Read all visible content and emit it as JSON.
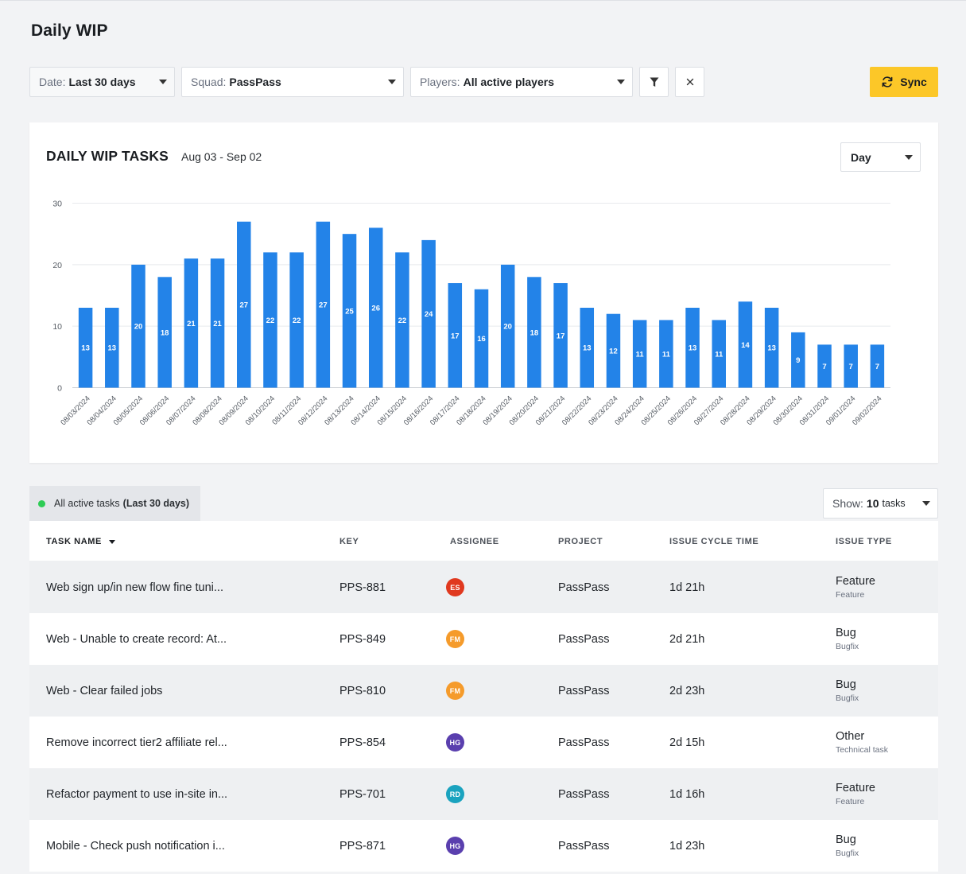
{
  "page": {
    "title": "Daily WIP"
  },
  "filters": {
    "date": {
      "label": "Date:",
      "value": "Last 30 days"
    },
    "squad": {
      "label": "Squad:",
      "value": "PassPass"
    },
    "players": {
      "label": "Players:",
      "value": "All active players"
    },
    "filter_icon": "filter-icon",
    "clear_icon": "close-icon",
    "sync_label": "Sync",
    "sync_icon": "refresh-icon"
  },
  "colors": {
    "accent": "#fcc728",
    "bar": "#2383e8",
    "active_dot": "#2ecc55"
  },
  "chart_card": {
    "title": "DAILY WIP TASKS",
    "range": "Aug 03 - Sep 02",
    "granularity": "Day"
  },
  "chart_data": {
    "type": "bar",
    "title": "DAILY WIP TASKS",
    "subtitle": "Aug 03 - Sep 02",
    "xlabel": "",
    "ylabel": "",
    "ylim": [
      0,
      30
    ],
    "yticks": [
      0,
      10,
      20,
      30
    ],
    "grid": true,
    "categories": [
      "08/03/2024",
      "08/04/2024",
      "08/05/2024",
      "08/06/2024",
      "08/07/2024",
      "08/08/2024",
      "08/09/2024",
      "08/10/2024",
      "08/11/2024",
      "08/12/2024",
      "08/13/2024",
      "08/14/2024",
      "08/15/2024",
      "08/16/2024",
      "08/17/2024",
      "08/18/2024",
      "08/19/2024",
      "08/20/2024",
      "08/21/2024",
      "08/22/2024",
      "08/23/2024",
      "08/24/2024",
      "08/25/2024",
      "08/26/2024",
      "08/27/2024",
      "08/28/2024",
      "08/29/2024",
      "08/30/2024",
      "08/31/2024",
      "09/01/2024",
      "09/02/2024"
    ],
    "values": [
      13,
      13,
      20,
      18,
      21,
      21,
      27,
      22,
      22,
      27,
      25,
      26,
      22,
      24,
      17,
      16,
      20,
      18,
      17,
      13,
      12,
      11,
      11,
      13,
      11,
      14,
      13,
      9,
      7,
      7,
      7
    ]
  },
  "tasks": {
    "tag_label": "All active tasks",
    "tag_period": "(Last 30 days)",
    "show": {
      "label": "Show:",
      "count": "10",
      "unit": "tasks"
    },
    "columns": [
      "TASK NAME",
      "KEY",
      "ASSIGNEE",
      "PROJECT",
      "ISSUE CYCLE TIME",
      "ISSUE TYPE"
    ],
    "rows": [
      {
        "name": "Web sign up/in new flow fine tuni...",
        "key": "PPS-881",
        "assignee": "ES",
        "assignee_color": "#e0391f",
        "project": "PassPass",
        "cycle": "1d 21h",
        "type": "Feature",
        "subtype": "Feature"
      },
      {
        "name": "Web - Unable to create record: At...",
        "key": "PPS-849",
        "assignee": "FM",
        "assignee_color": "#f59b2b",
        "project": "PassPass",
        "cycle": "2d 21h",
        "type": "Bug",
        "subtype": "Bugfix"
      },
      {
        "name": "Web - Clear failed jobs",
        "key": "PPS-810",
        "assignee": "FM",
        "assignee_color": "#f59b2b",
        "project": "PassPass",
        "cycle": "2d 23h",
        "type": "Bug",
        "subtype": "Bugfix"
      },
      {
        "name": "Remove incorrect tier2 affiliate rel...",
        "key": "PPS-854",
        "assignee": "HG",
        "assignee_color": "#5a3fae",
        "project": "PassPass",
        "cycle": "2d 15h",
        "type": "Other",
        "subtype": "Technical task"
      },
      {
        "name": "Refactor payment to use in-site in...",
        "key": "PPS-701",
        "assignee": "RD",
        "assignee_color": "#1aa3bf",
        "project": "PassPass",
        "cycle": "1d 16h",
        "type": "Feature",
        "subtype": "Feature"
      },
      {
        "name": "Mobile - Check push notification i...",
        "key": "PPS-871",
        "assignee": "HG",
        "assignee_color": "#5a3fae",
        "project": "PassPass",
        "cycle": "1d 23h",
        "type": "Bug",
        "subtype": "Bugfix"
      }
    ]
  }
}
